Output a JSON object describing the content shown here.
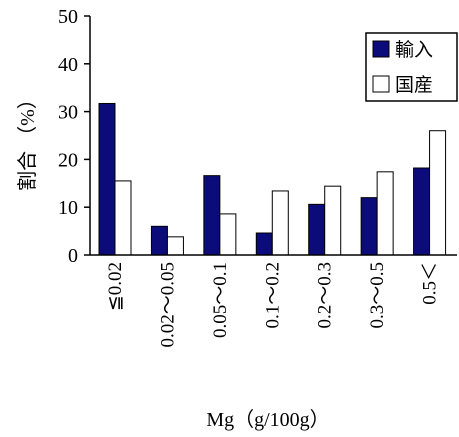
{
  "chart_data": {
    "type": "bar",
    "categories": [
      "≦0.02",
      "0.02～0.05",
      "0.05～0.1",
      "0.1～0.2",
      "0.2～0.3",
      "0.3～0.5",
      "0.5＜"
    ],
    "series": [
      {
        "name": "輸入",
        "values": [
          31.7,
          6.0,
          16.6,
          4.6,
          10.6,
          12.0,
          18.2
        ],
        "color": "#0b0b7a"
      },
      {
        "name": "国産",
        "values": [
          15.5,
          3.8,
          8.6,
          13.4,
          14.4,
          17.4,
          26.0
        ],
        "color": "#ffffff"
      }
    ],
    "title": "",
    "xlabel": "Mg（g/100g）",
    "ylabel": "割合 （%）",
    "ylim": [
      0,
      50
    ],
    "yticks": [
      0,
      10,
      20,
      30,
      40,
      50
    ],
    "grid": false,
    "legend_position": "top-right"
  }
}
